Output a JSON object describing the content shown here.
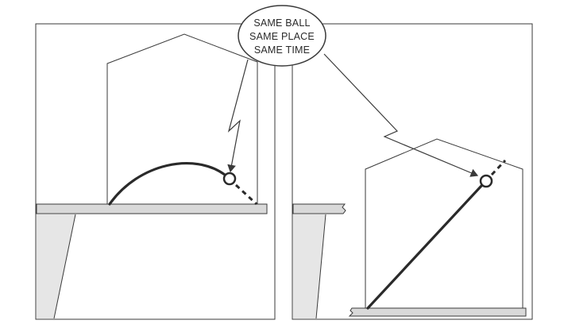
{
  "callout": {
    "line1": "SAME BALL",
    "line2": "SAME PLACE",
    "line3": "SAME TIME"
  },
  "colors": {
    "stroke": "#3a3a3a",
    "ledge_fill": "#d9d9d9",
    "shadow_fill": "#e6e6e6",
    "background": "#ffffff"
  }
}
